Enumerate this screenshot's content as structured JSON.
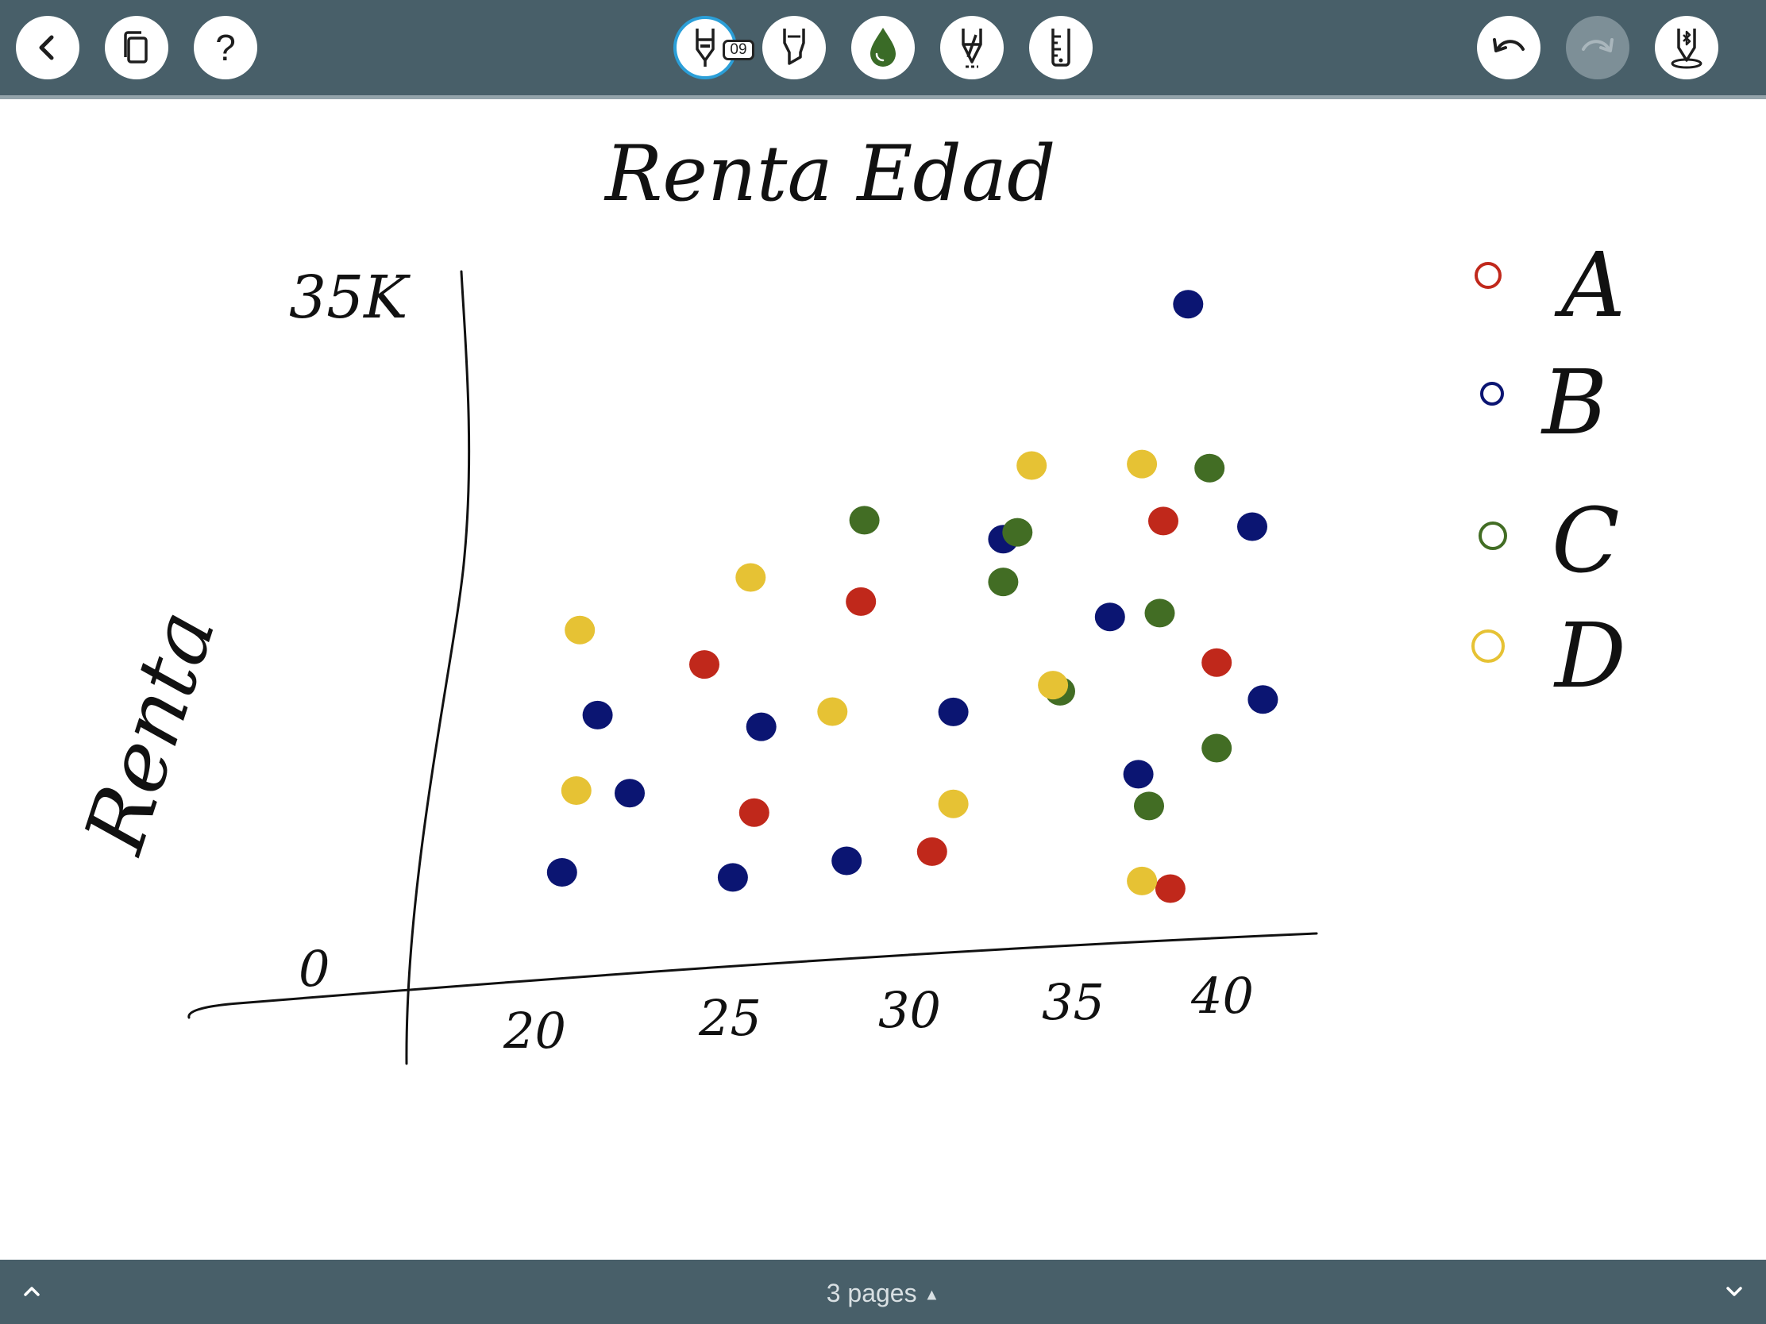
{
  "toolbar": {
    "left": [
      {
        "name": "back-button",
        "icon": "chevron-left-icon"
      },
      {
        "name": "pages-button",
        "icon": "copy-pages-icon"
      },
      {
        "name": "help-button",
        "icon": "question-icon",
        "glyph": "?"
      }
    ],
    "tools": [
      {
        "name": "pen-tool-button",
        "icon": "fountain-pen-icon",
        "badge": "09",
        "selected": true
      },
      {
        "name": "highlighter-tool-button",
        "icon": "highlighter-icon"
      },
      {
        "name": "color-button",
        "icon": "ink-drop-icon",
        "color": "#3a6b27"
      },
      {
        "name": "eraser-tool-button",
        "icon": "eraser-icon"
      },
      {
        "name": "ruler-tool-button",
        "icon": "ruler-icon"
      }
    ],
    "right": [
      {
        "name": "undo-button",
        "icon": "undo-icon",
        "enabled": true
      },
      {
        "name": "redo-button",
        "icon": "redo-icon",
        "enabled": false
      },
      {
        "name": "stylus-button",
        "icon": "bluetooth-stylus-icon"
      }
    ]
  },
  "drawing": {
    "title": "Renta Edad",
    "y_axis_label": "Renta",
    "y_top_tick": "35K",
    "y_bottom_tick": "0",
    "x_ticks": [
      "20",
      "25",
      "30",
      "35",
      "40"
    ],
    "legend": [
      {
        "label": "A",
        "color": "#c0281b"
      },
      {
        "label": "B",
        "color": "#0b1572"
      },
      {
        "label": "C",
        "color": "#426d24"
      },
      {
        "label": "D",
        "color": "#e6c234"
      }
    ],
    "colors": {
      "A": "#c0281b",
      "B": "#0b1572",
      "C": "#426d24",
      "D": "#e6c234"
    }
  },
  "chart_data": {
    "type": "scatter",
    "title": "Renta Edad",
    "xlabel": "",
    "ylabel": "Renta",
    "xlim": [
      17,
      42
    ],
    "ylim": [
      0,
      35000
    ],
    "grid": false,
    "legend_position": "right",
    "series": [
      {
        "name": "A",
        "color": "#c0281b",
        "points": [
          [
            24.8,
            14800
          ],
          [
            29.2,
            17500
          ],
          [
            26.2,
            7800
          ],
          [
            31.2,
            5700
          ],
          [
            37.7,
            20800
          ],
          [
            39.2,
            14100
          ],
          [
            37.9,
            3600
          ]
        ]
      },
      {
        "name": "B",
        "color": "#0b1572",
        "points": [
          [
            21.8,
            12600
          ],
          [
            22.7,
            8900
          ],
          [
            20.8,
            5300
          ],
          [
            25.6,
            4800
          ],
          [
            26.4,
            11800
          ],
          [
            28.8,
            5400
          ],
          [
            31.8,
            12200
          ],
          [
            33.2,
            20200
          ],
          [
            36.2,
            16400
          ],
          [
            38.4,
            30900
          ],
          [
            40.2,
            20400
          ],
          [
            40.5,
            12300
          ],
          [
            37.0,
            9000
          ]
        ]
      },
      {
        "name": "C",
        "color": "#426d24",
        "points": [
          [
            29.3,
            21300
          ],
          [
            33.6,
            20500
          ],
          [
            33.2,
            18200
          ],
          [
            37.6,
            16500
          ],
          [
            39.0,
            23200
          ],
          [
            34.8,
            13000
          ],
          [
            39.2,
            10100
          ],
          [
            37.3,
            7500
          ]
        ]
      },
      {
        "name": "D",
        "color": "#e6c234",
        "points": [
          [
            21.3,
            16600
          ],
          [
            26.1,
            18800
          ],
          [
            21.2,
            9100
          ],
          [
            28.4,
            12400
          ],
          [
            31.8,
            7900
          ],
          [
            34.0,
            23600
          ],
          [
            37.1,
            23500
          ],
          [
            34.6,
            13300
          ],
          [
            37.1,
            4000
          ]
        ]
      }
    ]
  },
  "footer": {
    "pages_label": "3 pages"
  }
}
